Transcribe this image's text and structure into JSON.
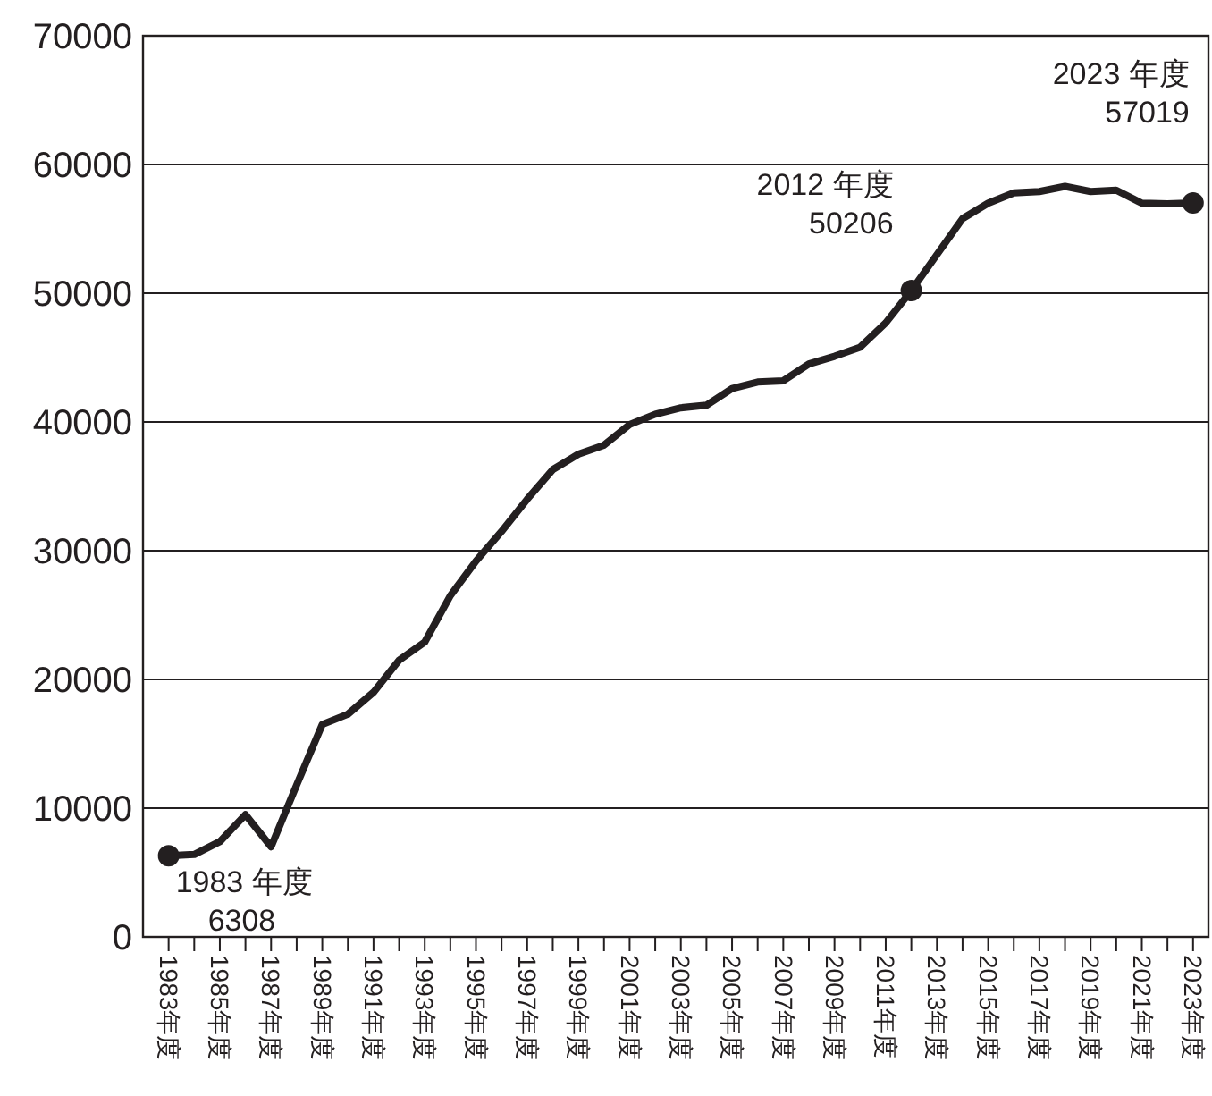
{
  "chart_data": {
    "type": "line",
    "x": [
      1983,
      1984,
      1985,
      1986,
      1987,
      1988,
      1989,
      1990,
      1991,
      1992,
      1993,
      1994,
      1995,
      1996,
      1997,
      1998,
      1999,
      2000,
      2001,
      2002,
      2003,
      2004,
      2005,
      2006,
      2007,
      2008,
      2009,
      2010,
      2011,
      2012,
      2013,
      2014,
      2015,
      2016,
      2017,
      2018,
      2019,
      2020,
      2021,
      2022,
      2023
    ],
    "series": [
      {
        "color": "#231f20",
        "values": [
          6308,
          6400,
          7400,
          9500,
          7000,
          11800,
          16500,
          17300,
          19000,
          21500,
          22900,
          26500,
          29200,
          31500,
          34000,
          36300,
          37500,
          38200,
          39800,
          40600,
          41100,
          41300,
          42600,
          43100,
          43200,
          44500,
          45100,
          45800,
          47700,
          50206,
          53000,
          55800,
          57000,
          57800,
          57900,
          58300,
          57900,
          58000,
          57000,
          56950,
          57019
        ]
      },
      {
        "type": "scatter",
        "color": "#231f20",
        "x": [
          1983,
          2012,
          2023
        ],
        "values": [
          6308,
          50206,
          57019
        ]
      }
    ],
    "xlim": [
      1982,
      2023.6
    ],
    "xticks": [
      {
        "value": 1983,
        "label": "1983年度"
      },
      {
        "value": 1984,
        "label": null
      },
      {
        "value": 1985,
        "label": "1985年度"
      },
      {
        "value": 1986,
        "label": null
      },
      {
        "value": 1987,
        "label": "1987年度"
      },
      {
        "value": 1988,
        "label": null
      },
      {
        "value": 1989,
        "label": "1989年度"
      },
      {
        "value": 1990,
        "label": null
      },
      {
        "value": 1991,
        "label": "1991年度"
      },
      {
        "value": 1992,
        "label": null
      },
      {
        "value": 1993,
        "label": "1993年度"
      },
      {
        "value": 1994,
        "label": null
      },
      {
        "value": 1995,
        "label": "1995年度"
      },
      {
        "value": 1996,
        "label": null
      },
      {
        "value": 1997,
        "label": "1997年度"
      },
      {
        "value": 1998,
        "label": null
      },
      {
        "value": 1999,
        "label": "1999年度"
      },
      {
        "value": 2000,
        "label": null
      },
      {
        "value": 2001,
        "label": "2001年度"
      },
      {
        "value": 2002,
        "label": null
      },
      {
        "value": 2003,
        "label": "2003年度"
      },
      {
        "value": 2004,
        "label": null
      },
      {
        "value": 2005,
        "label": "2005年度"
      },
      {
        "value": 2006,
        "label": null
      },
      {
        "value": 2007,
        "label": "2007年度"
      },
      {
        "value": 2008,
        "label": null
      },
      {
        "value": 2009,
        "label": "2009年度"
      },
      {
        "value": 2010,
        "label": null
      },
      {
        "value": 2011,
        "label": "2011年度"
      },
      {
        "value": 2012,
        "label": null
      },
      {
        "value": 2013,
        "label": "2013年度"
      },
      {
        "value": 2014,
        "label": null
      },
      {
        "value": 2015,
        "label": "2015年度"
      },
      {
        "value": 2016,
        "label": null
      },
      {
        "value": 2017,
        "label": "2017年度"
      },
      {
        "value": 2018,
        "label": null
      },
      {
        "value": 2019,
        "label": "2019年度"
      },
      {
        "value": 2020,
        "label": null
      },
      {
        "value": 2021,
        "label": "2021年度"
      },
      {
        "value": 2022,
        "label": null
      },
      {
        "value": 2023,
        "label": "2023年度"
      }
    ],
    "ylim": [
      0,
      70000
    ],
    "yticks": [
      0,
      10000,
      20000,
      30000,
      40000,
      50000,
      60000,
      70000
    ],
    "grid": "y",
    "annotations": [
      {
        "text": "1983 年度\n6308",
        "x": 1983,
        "y": 6308
      },
      {
        "text": "2012 年度\n50206",
        "x": 2012,
        "y": 50206
      },
      {
        "text": "2023 年度\n57019",
        "x": 2023,
        "y": 57019
      }
    ]
  }
}
